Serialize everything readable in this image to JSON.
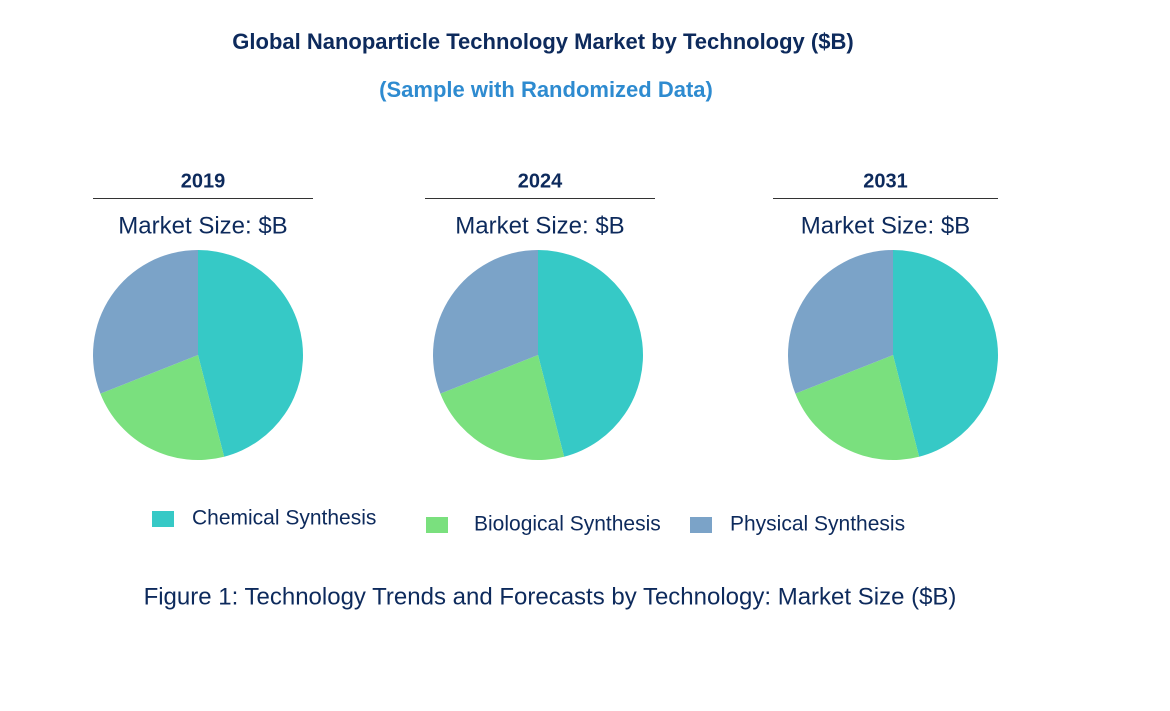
{
  "title": "Global Nanoparticle Technology Market by Technology ($B)",
  "subtitle": "(Sample with Randomized Data)",
  "caption": "Figure 1: Technology Trends and Forecasts by Technology: Market Size ($B)",
  "chart_data": [
    {
      "type": "pie",
      "title": "2019",
      "subtitle": "Market Size: $B",
      "categories": [
        "Chemical Synthesis",
        "Biological Synthesis",
        "Physical Synthesis"
      ],
      "values": [
        46,
        23,
        31
      ],
      "colors": [
        "#36c9c6",
        "#7ae07e",
        "#7ba3c8"
      ]
    },
    {
      "type": "pie",
      "title": "2024",
      "subtitle": "Market Size: $B",
      "categories": [
        "Chemical Synthesis",
        "Biological Synthesis",
        "Physical Synthesis"
      ],
      "values": [
        46,
        23,
        31
      ],
      "colors": [
        "#36c9c6",
        "#7ae07e",
        "#7ba3c8"
      ]
    },
    {
      "type": "pie",
      "title": "2031",
      "subtitle": "Market Size: $B",
      "categories": [
        "Chemical Synthesis",
        "Biological Synthesis",
        "Physical Synthesis"
      ],
      "values": [
        46,
        23,
        31
      ],
      "colors": [
        "#36c9c6",
        "#7ae07e",
        "#7ba3c8"
      ]
    }
  ]
}
